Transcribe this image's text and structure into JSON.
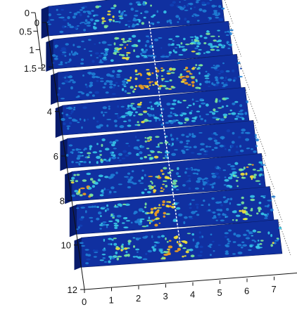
{
  "chart_data": {
    "type": "heatmap",
    "style": "stacked 3D waterfall of heatmap slices",
    "title": "",
    "xlabel": "",
    "ylabel": "",
    "x_ticks": [
      "0",
      "1",
      "2",
      "3",
      "4",
      "5",
      "6",
      "7"
    ],
    "y_ticks": [
      "0",
      "2",
      "4",
      "6",
      "8",
      "10",
      "12"
    ],
    "inset_ticks": [
      "0",
      "0.5",
      "1",
      "1.5"
    ],
    "xlim": [
      0,
      7.5
    ],
    "ylim": [
      0,
      12
    ],
    "inset_lim": [
      0,
      1.5
    ],
    "reference_line_x": 3.5,
    "slices": [
      {
        "y": 0,
        "hotspots": [
          {
            "x": 2.5,
            "intensity": 0.6
          },
          {
            "x": 4.2,
            "intensity": 0.3
          }
        ]
      },
      {
        "y": 1,
        "hotspots": [
          {
            "x": 3.0,
            "intensity": 0.7
          },
          {
            "x": 5.5,
            "intensity": 0.5
          },
          {
            "x": 6.6,
            "intensity": 0.4
          }
        ]
      },
      {
        "y": 2,
        "hotspots": [
          {
            "x": 3.4,
            "intensity": 0.9
          },
          {
            "x": 5.3,
            "intensity": 0.9
          },
          {
            "x": 4.2,
            "intensity": 0.6
          }
        ]
      },
      {
        "y": 3,
        "hotspots": [
          {
            "x": 3.2,
            "intensity": 0.5
          },
          {
            "x": 5.0,
            "intensity": 0.4
          },
          {
            "x": 6.5,
            "intensity": 0.4
          }
        ]
      },
      {
        "y": 4,
        "hotspots": [
          {
            "x": 3.5,
            "intensity": 0.6
          },
          {
            "x": 1.2,
            "intensity": 0.4
          }
        ]
      },
      {
        "y": 5,
        "hotspots": [
          {
            "x": 0.5,
            "intensity": 0.8
          },
          {
            "x": 3.4,
            "intensity": 0.9
          },
          {
            "x": 6.8,
            "intensity": 0.7
          }
        ]
      },
      {
        "y": 6,
        "hotspots": [
          {
            "x": 3.2,
            "intensity": 1.0
          },
          {
            "x": 6.5,
            "intensity": 0.6
          },
          {
            "x": 1.5,
            "intensity": 0.4
          }
        ]
      },
      {
        "y": 7,
        "hotspots": [
          {
            "x": 3.5,
            "intensity": 1.0
          },
          {
            "x": 7.0,
            "intensity": 0.5
          },
          {
            "x": 1.5,
            "intensity": 0.5
          }
        ]
      }
    ],
    "colormap": [
      "#0a1a78",
      "#1141b5",
      "#1f7fd6",
      "#37c6e8",
      "#7ee89a",
      "#f4e33a",
      "#f5a21c"
    ],
    "grid": false,
    "legend": "none"
  }
}
